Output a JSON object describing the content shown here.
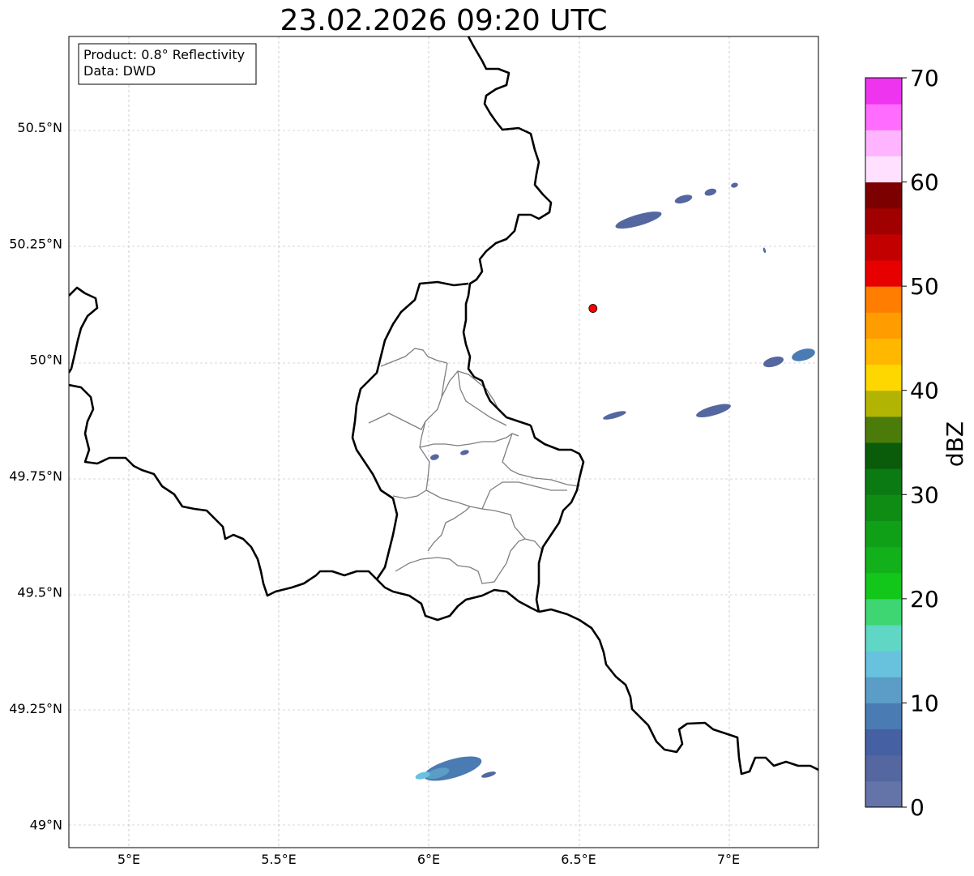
{
  "title": "23.02.2026 09:20 UTC",
  "info": {
    "product": "Product: 0.8° Reflectivity",
    "data": "Data: DWD"
  },
  "map_axes": {
    "lon_range": [
      4.8,
      7.3
    ],
    "lat_range": [
      48.95,
      50.695
    ],
    "lon_ticks": [
      {
        "value": 5.0,
        "label": "5°E"
      },
      {
        "value": 5.5,
        "label": "5.5°E"
      },
      {
        "value": 6.0,
        "label": "6°E"
      },
      {
        "value": 6.5,
        "label": "6.5°E"
      },
      {
        "value": 7.0,
        "label": "7°E"
      }
    ],
    "lat_ticks": [
      {
        "value": 50.5,
        "label": "50.5°N"
      },
      {
        "value": 50.25,
        "label": "50.25°N"
      },
      {
        "value": 50.0,
        "label": "50°N"
      },
      {
        "value": 49.75,
        "label": "49.75°N"
      },
      {
        "value": 49.5,
        "label": "49.5°N"
      },
      {
        "value": 49.25,
        "label": "49.25°N"
      },
      {
        "value": 49.0,
        "label": "49°N"
      }
    ],
    "gridlines": true
  },
  "radar_site": {
    "lon": 6.548,
    "lat": 50.11,
    "color": "#ff0000"
  },
  "colorbar": {
    "label": "dBZ",
    "min": 0,
    "max": 70,
    "step": 2.5,
    "ticks": [
      {
        "value": 0,
        "label": "0"
      },
      {
        "value": 10,
        "label": "10"
      },
      {
        "value": 20,
        "label": "20"
      },
      {
        "value": 30,
        "label": "30"
      },
      {
        "value": 40,
        "label": "40"
      },
      {
        "value": 50,
        "label": "50"
      },
      {
        "value": 60,
        "label": "60"
      },
      {
        "value": 70,
        "label": "70"
      }
    ],
    "colors": [
      "#6474a8",
      "#5467a0",
      "#4560a3",
      "#4a7bb2",
      "#5b9dc7",
      "#68c2de",
      "#5fd7c4",
      "#3ed672",
      "#12c61a",
      "#12b01a",
      "#10a018",
      "#0e8c14",
      "#0b7a12",
      "#0a5c0a",
      "#4b7c0a",
      "#b2b404",
      "#ffd700",
      "#ffb700",
      "#ff9c00",
      "#ff7d00",
      "#e60000",
      "#c30000",
      "#a00000",
      "#7d0000",
      "#ffe1ff",
      "#ffb4ff",
      "#ff6cff",
      "#ee34ee"
    ]
  },
  "echoes": [
    {
      "lon": 6.08,
      "lat": 49.12,
      "rlon": 0.1,
      "rlat": 0.02,
      "color": "#4a7bb2"
    },
    {
      "lon": 6.03,
      "lat": 49.11,
      "rlon": 0.04,
      "rlat": 0.01,
      "color": "#5b9dc7"
    },
    {
      "lon": 5.98,
      "lat": 49.105,
      "rlon": 0.025,
      "rlat": 0.007,
      "color": "#68c2de"
    },
    {
      "lon": 6.2,
      "lat": 49.107,
      "rlon": 0.025,
      "rlat": 0.005,
      "color": "#5467a0"
    },
    {
      "lon": 6.7,
      "lat": 50.3,
      "rlon": 0.08,
      "rlat": 0.012,
      "color": "#5467a0"
    },
    {
      "lon": 6.85,
      "lat": 50.345,
      "rlon": 0.03,
      "rlat": 0.008,
      "color": "#5467a0"
    },
    {
      "lon": 6.94,
      "lat": 50.36,
      "rlon": 0.02,
      "rlat": 0.007,
      "color": "#5467a0"
    },
    {
      "lon": 7.02,
      "lat": 50.375,
      "rlon": 0.012,
      "rlat": 0.005,
      "color": "#5467a0"
    },
    {
      "lon": 7.12,
      "lat": 50.235,
      "rlon": 0.004,
      "rlat": 0.006,
      "color": "#5467a0"
    },
    {
      "lon": 7.15,
      "lat": 49.995,
      "rlon": 0.035,
      "rlat": 0.01,
      "color": "#5467a0"
    },
    {
      "lon": 7.25,
      "lat": 50.01,
      "rlon": 0.04,
      "rlat": 0.012,
      "color": "#4a7bb2"
    },
    {
      "lon": 6.95,
      "lat": 49.89,
      "rlon": 0.06,
      "rlat": 0.01,
      "color": "#5467a0"
    },
    {
      "lon": 6.62,
      "lat": 49.88,
      "rlon": 0.04,
      "rlat": 0.006,
      "color": "#5467a0"
    },
    {
      "lon": 6.02,
      "lat": 49.79,
      "rlon": 0.015,
      "rlat": 0.006,
      "color": "#5467a0"
    },
    {
      "lon": 6.12,
      "lat": 49.8,
      "rlon": 0.015,
      "rlat": 0.005,
      "color": "#5467a0"
    }
  ]
}
